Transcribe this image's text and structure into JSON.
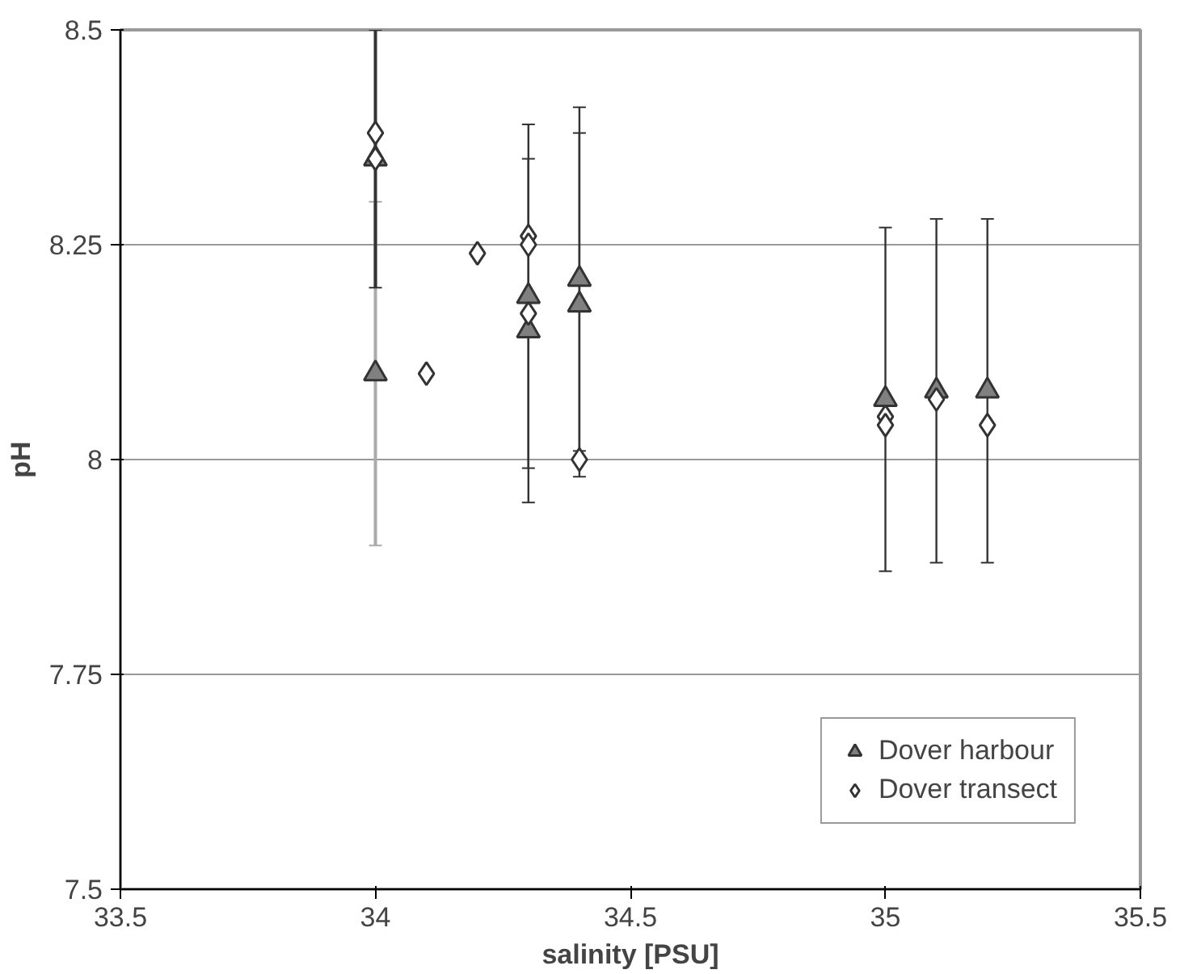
{
  "chart_data": {
    "type": "scatter",
    "xlabel": "salinity [PSU]",
    "ylabel": "pH",
    "xlim": [
      33.5,
      35.5
    ],
    "xticks": [
      33.5,
      34,
      34.5,
      35,
      35.5
    ],
    "ylim": [
      7.5,
      8.5
    ],
    "yticks": [
      7.5,
      7.75,
      8,
      8.25,
      8.5
    ],
    "grid": "y",
    "legend": "bottom right",
    "series": [
      {
        "name": "Dover harbour",
        "color": "#808080",
        "marker": "triangle",
        "x": [
          34,
          34,
          34.3,
          34.3,
          34.4,
          34.4,
          35,
          35.1,
          35.2
        ],
        "values": [
          8.1,
          8.35,
          8.19,
          8.15,
          8.21,
          8.18,
          8.07,
          8.08,
          8.08
        ],
        "errors": [
          0.2,
          0.15,
          0.2,
          0.2,
          0.2,
          0.2,
          0.2,
          0.2,
          0.2
        ]
      },
      {
        "name": "Dover transect",
        "color": "#ffffff",
        "marker": "diamond",
        "x": [
          34,
          34,
          34.1,
          34.2,
          34.3,
          34.3,
          34.3,
          34.4,
          35,
          35,
          35.1,
          35.2
        ],
        "values": [
          8.38,
          8.35,
          8.1,
          8.24,
          8.26,
          8.25,
          8.17,
          8.0,
          8.05,
          8.04,
          8.07,
          8.04
        ]
      }
    ]
  }
}
